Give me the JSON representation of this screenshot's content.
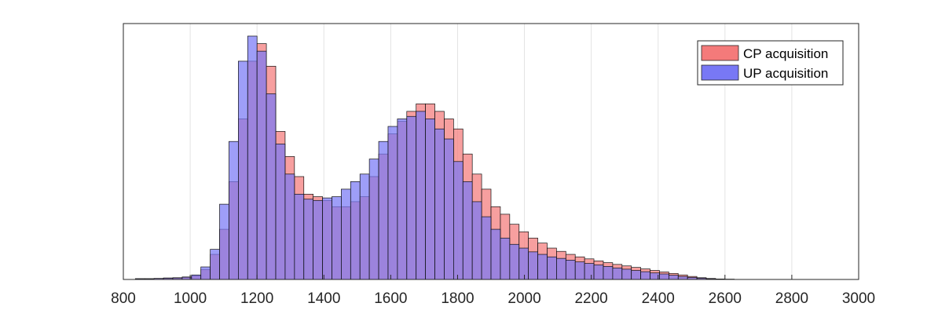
{
  "chart_data": {
    "type": "bar",
    "subtype": "overlapping-histogram",
    "title": "",
    "xlabel": "",
    "ylabel": "",
    "xlim": [
      800,
      3000
    ],
    "ylim": [
      0,
      1.02
    ],
    "x_ticks": [
      800,
      1000,
      1200,
      1400,
      1600,
      1800,
      2000,
      2200,
      2400,
      2600,
      2800,
      3000
    ],
    "x_tick_labels": [
      "800",
      "1000",
      "1200",
      "1400",
      "1600",
      "1800",
      "2000",
      "2200",
      "2400",
      "2600",
      "2800",
      "3000"
    ],
    "y_tick_labels_shown": false,
    "grid": {
      "x": true,
      "y": false
    },
    "legend_position": "top-right",
    "bin_width": 28,
    "bin_start": 836,
    "values_are_relative": true,
    "series": [
      {
        "name": "CP acquisition",
        "color": "#f47a7a",
        "values": [
          0.003,
          0.003,
          0.004,
          0.006,
          0.007,
          0.01,
          0.015,
          0.04,
          0.1,
          0.2,
          0.39,
          0.64,
          0.87,
          0.94,
          0.85,
          0.59,
          0.49,
          0.41,
          0.34,
          0.33,
          0.315,
          0.29,
          0.29,
          0.31,
          0.33,
          0.41,
          0.5,
          0.58,
          0.63,
          0.67,
          0.7,
          0.7,
          0.67,
          0.64,
          0.6,
          0.5,
          0.42,
          0.36,
          0.29,
          0.26,
          0.22,
          0.19,
          0.165,
          0.145,
          0.125,
          0.112,
          0.1,
          0.09,
          0.082,
          0.074,
          0.067,
          0.06,
          0.054,
          0.048,
          0.042,
          0.036,
          0.03,
          0.024,
          0.018,
          0.012,
          0.007,
          0.004,
          0.002,
          0.001
        ]
      },
      {
        "name": "UP acquisition",
        "color": "#7878f5",
        "values": [
          0.003,
          0.003,
          0.004,
          0.005,
          0.006,
          0.009,
          0.018,
          0.05,
          0.12,
          0.3,
          0.55,
          0.87,
          0.97,
          0.91,
          0.74,
          0.54,
          0.42,
          0.34,
          0.32,
          0.315,
          0.325,
          0.33,
          0.36,
          0.39,
          0.42,
          0.48,
          0.55,
          0.61,
          0.64,
          0.65,
          0.67,
          0.64,
          0.6,
          0.56,
          0.47,
          0.39,
          0.31,
          0.25,
          0.2,
          0.165,
          0.14,
          0.125,
          0.11,
          0.1,
          0.09,
          0.084,
          0.077,
          0.07,
          0.064,
          0.058,
          0.052,
          0.046,
          0.041,
          0.036,
          0.031,
          0.026,
          0.022,
          0.017,
          0.012,
          0.008,
          0.005,
          0.003,
          0.001,
          0.001
        ]
      }
    ]
  }
}
